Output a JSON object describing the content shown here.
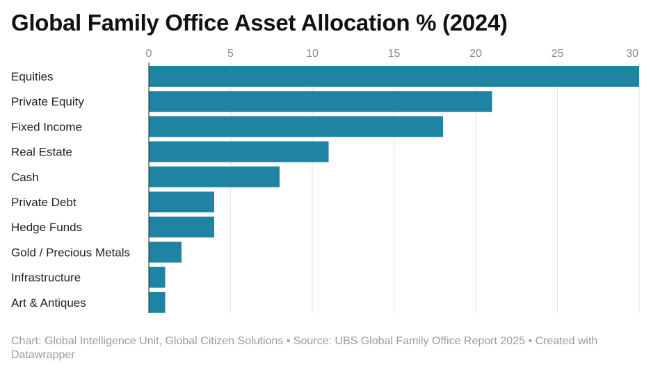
{
  "chart_data": {
    "type": "bar",
    "orientation": "horizontal",
    "title": "Global Family Office Asset Allocation % (2024)",
    "categories": [
      "Equities",
      "Private Equity",
      "Fixed Income",
      "Real Estate",
      "Cash",
      "Private Debt",
      "Hedge Funds",
      "Gold / Precious Metals",
      "Infrastructure",
      "Art & Antiques"
    ],
    "values": [
      30,
      21,
      18,
      11,
      8,
      4,
      4,
      2,
      1,
      1
    ],
    "xlim": [
      0,
      30
    ],
    "xticks": [
      0,
      5,
      10,
      15,
      20,
      25,
      30
    ],
    "tick_position": "top",
    "grid": true,
    "bar_color": "#1f83a3",
    "xlabel": "",
    "ylabel": ""
  },
  "footer": {
    "credit": "Chart: Global Intelligence Unit, Global Citizen Solutions • Source: UBS Global Family Office Report 2025 • Created with Datawrapper"
  }
}
